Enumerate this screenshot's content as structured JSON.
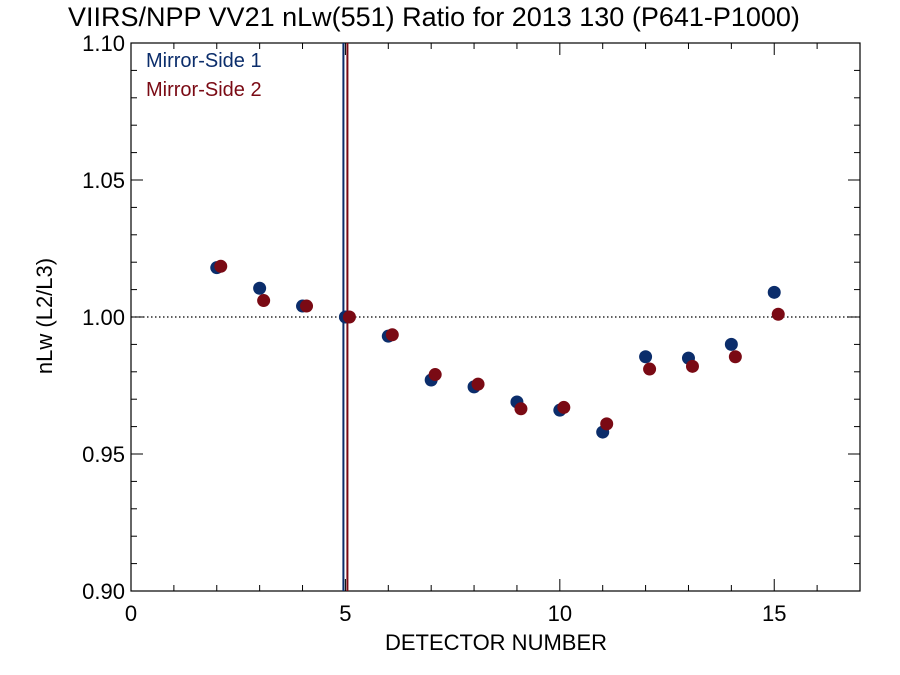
{
  "chart_data": {
    "type": "scatter",
    "title": "VIIRS/NPP VV21 nLw(551) Ratio for 2013 130 (P641-P1000)",
    "xlabel": "DETECTOR NUMBER",
    "ylabel": "nLw (L2/L3)",
    "xlim": [
      0,
      17
    ],
    "ylim": [
      0.9,
      1.1
    ],
    "xticks": [
      0,
      5,
      10,
      15
    ],
    "xtick_labels": [
      "0",
      "5",
      "10",
      "15"
    ],
    "yticks": [
      0.9,
      0.95,
      1.0,
      1.05,
      1.1
    ],
    "ytick_labels": [
      "0.90",
      "0.95",
      "1.00",
      "1.05",
      "1.10"
    ],
    "reference_line": {
      "y": 1.0,
      "style": "dotted"
    },
    "vertical_lines": [
      {
        "x": 5,
        "series": "Mirror-Side 1"
      },
      {
        "x": 5,
        "series": "Mirror-Side 2"
      }
    ],
    "legend_position": "top-left",
    "grid": false,
    "series": [
      {
        "name": "Mirror-Side 1",
        "color": "#0b2d6b",
        "x": [
          2,
          3,
          4,
          5,
          6,
          7,
          8,
          9,
          10,
          11,
          12,
          13,
          14,
          15
        ],
        "y": [
          1.018,
          1.0105,
          1.004,
          1.0,
          0.993,
          0.977,
          0.9745,
          0.969,
          0.966,
          0.958,
          0.9855,
          0.985,
          0.99,
          1.009
        ]
      },
      {
        "name": "Mirror-Side 2",
        "color": "#7a0a14",
        "x": [
          2,
          3,
          4,
          5,
          6,
          7,
          8,
          9,
          10,
          11,
          12,
          13,
          14,
          15
        ],
        "y": [
          1.0185,
          1.006,
          1.004,
          1.0,
          0.9935,
          0.979,
          0.9755,
          0.9665,
          0.967,
          0.961,
          0.981,
          0.982,
          0.9855,
          1.001
        ]
      }
    ]
  }
}
